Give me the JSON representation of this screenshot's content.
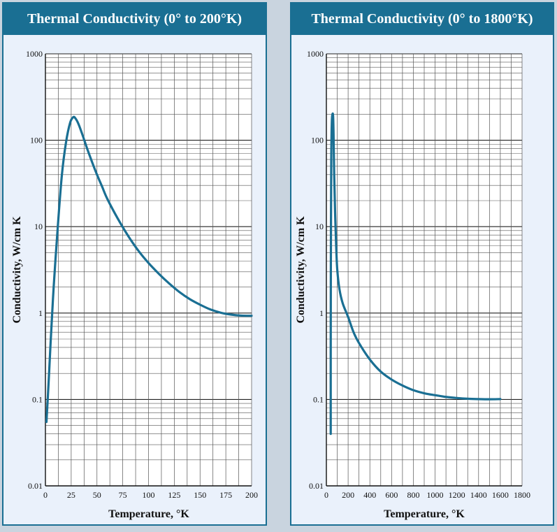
{
  "chart_data": [
    {
      "type": "line",
      "title": "Thermal Conductivity (0° to 200°K)",
      "xlabel": "Temperature, °K",
      "ylabel": "Conductivity, W/cm K",
      "xscale": "linear",
      "yscale": "log",
      "xlim": [
        0,
        200
      ],
      "ylim": [
        0.01,
        1000
      ],
      "grid": true,
      "xticks": [
        0,
        25,
        50,
        75,
        100,
        125,
        150,
        175,
        200
      ],
      "xtick_labels": [
        "0",
        "25",
        "50",
        "75",
        "100",
        "125",
        "150",
        "175",
        "200"
      ],
      "yticks": [
        0.01,
        0.1,
        1,
        10,
        100,
        1000
      ],
      "ytick_labels": [
        "0.01",
        "0.1",
        "1",
        "10",
        "100",
        "1000"
      ],
      "line_color": "#1a6f93",
      "series": [
        {
          "name": "Conductivity",
          "x": [
            1,
            3,
            5,
            8,
            12,
            16,
            20,
            24,
            27,
            29,
            32,
            36,
            40,
            45,
            50,
            55,
            60,
            70,
            80,
            90,
            100,
            110,
            120,
            130,
            140,
            150,
            160,
            170,
            180,
            190,
            200
          ],
          "y": [
            0.055,
            0.15,
            0.45,
            2.0,
            10,
            40,
            95,
            160,
            185,
            180,
            155,
            115,
            83,
            57,
            40,
            29,
            21,
            12.5,
            7.9,
            5.3,
            3.8,
            2.85,
            2.2,
            1.75,
            1.45,
            1.25,
            1.1,
            1.01,
            0.96,
            0.935,
            0.93
          ]
        }
      ]
    },
    {
      "type": "line",
      "title": "Thermal Conductivity (0° to 1800°K)",
      "xlabel": "Temperature, °K",
      "ylabel": "Conductivity, W/cm K",
      "xscale": "linear",
      "yscale": "log",
      "xlim": [
        0,
        1800
      ],
      "ylim": [
        0.01,
        1000
      ],
      "grid": true,
      "xticks": [
        0,
        200,
        400,
        600,
        800,
        1000,
        1200,
        1400,
        1600,
        1800
      ],
      "xtick_labels": [
        "0",
        "200",
        "400",
        "600",
        "800",
        "1000",
        "1200",
        "1400",
        "1600",
        "1800"
      ],
      "yticks": [
        0.01,
        0.1,
        1,
        10,
        100,
        1000
      ],
      "ytick_labels": [
        "0.01",
        "0.1",
        "1",
        "10",
        "100",
        "1000"
      ],
      "line_color": "#1a6f93",
      "series": [
        {
          "name": "Conductivity",
          "x": [
            40,
            40,
            41,
            45,
            50,
            56,
            62,
            66,
            72,
            80,
            90,
            100,
            120,
            150,
            200,
            250,
            300,
            400,
            500,
            600,
            700,
            800,
            900,
            1000,
            1100,
            1200,
            1300,
            1400,
            1500,
            1600
          ],
          "y": [
            0.04,
            0.3,
            3,
            60,
            160,
            200,
            190,
            120,
            40,
            15,
            6,
            3.2,
            1.9,
            1.3,
            0.9,
            0.6,
            0.45,
            0.29,
            0.21,
            0.17,
            0.145,
            0.128,
            0.118,
            0.112,
            0.107,
            0.104,
            0.102,
            0.101,
            0.1005,
            0.101
          ]
        }
      ]
    }
  ]
}
